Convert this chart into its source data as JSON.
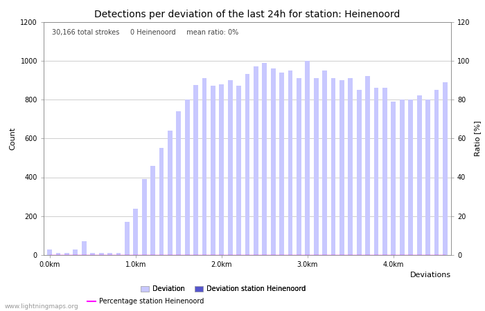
{
  "title": "Detections per deviation of the last 24h for station: Heinenoord",
  "annotation": "30,166 total strokes     0 Heinenoord     mean ratio: 0%",
  "ylabel_left": "Count",
  "ylabel_right": "Ratio [%]",
  "xlabel": "Deviations",
  "ylim_left": [
    0,
    1200
  ],
  "ylim_right": [
    0,
    120
  ],
  "xtick_positions": [
    0,
    10,
    20,
    30,
    40
  ],
  "xtick_labels": [
    "0.0km",
    "1.0km",
    "2.0km",
    "3.0km",
    "4.0km"
  ],
  "ytick_left": [
    0,
    200,
    400,
    600,
    800,
    1000,
    1200
  ],
  "ytick_right": [
    0,
    20,
    40,
    60,
    80,
    100,
    120
  ],
  "bar_color": "#c8c8ff",
  "station_bar_color": "#5555cc",
  "line_color": "#ff00ff",
  "background_color": "#ffffff",
  "grid_color": "#bbbbbb",
  "watermark": "www.lightningmaps.org",
  "deviation_values": [
    30,
    10,
    10,
    30,
    70,
    10,
    10,
    10,
    10,
    170,
    240,
    390,
    460,
    550,
    640,
    740,
    800,
    875,
    910,
    870,
    880,
    900,
    870,
    930,
    970,
    990,
    960,
    940,
    950,
    910,
    1000,
    910,
    950,
    910,
    900,
    910,
    850,
    920,
    860,
    860,
    790,
    800,
    800,
    820,
    800,
    850,
    890
  ],
  "station_values": [
    0,
    0,
    0,
    0,
    0,
    0,
    0,
    0,
    0,
    0,
    0,
    0,
    0,
    0,
    0,
    0,
    0,
    0,
    0,
    0,
    0,
    0,
    0,
    0,
    0,
    0,
    0,
    0,
    0,
    0,
    0,
    0,
    0,
    0,
    0,
    0,
    0,
    0,
    0,
    0,
    0,
    0,
    0,
    0,
    0,
    0,
    0
  ],
  "ratio_values": [
    0,
    0,
    0,
    0,
    0,
    0,
    0,
    0,
    0,
    0,
    0,
    0,
    0,
    0,
    0,
    0,
    0,
    0,
    0,
    0,
    0,
    0,
    0,
    0,
    0,
    0,
    0,
    0,
    0,
    0,
    0,
    0,
    0,
    0,
    0,
    0,
    0,
    0,
    0,
    0,
    0,
    0,
    0,
    0,
    0,
    0,
    0
  ],
  "legend_entries": [
    {
      "label": "Deviation",
      "type": "bar",
      "color": "#c8c8ff"
    },
    {
      "label": "Deviation station Heinenoord",
      "type": "bar",
      "color": "#5555cc"
    },
    {
      "label": "Percentage station Heinenoord",
      "type": "line",
      "color": "#ff00ff"
    }
  ],
  "title_fontsize": 10,
  "axis_fontsize": 8,
  "tick_fontsize": 7,
  "annotation_fontsize": 7,
  "legend_fontsize": 7
}
